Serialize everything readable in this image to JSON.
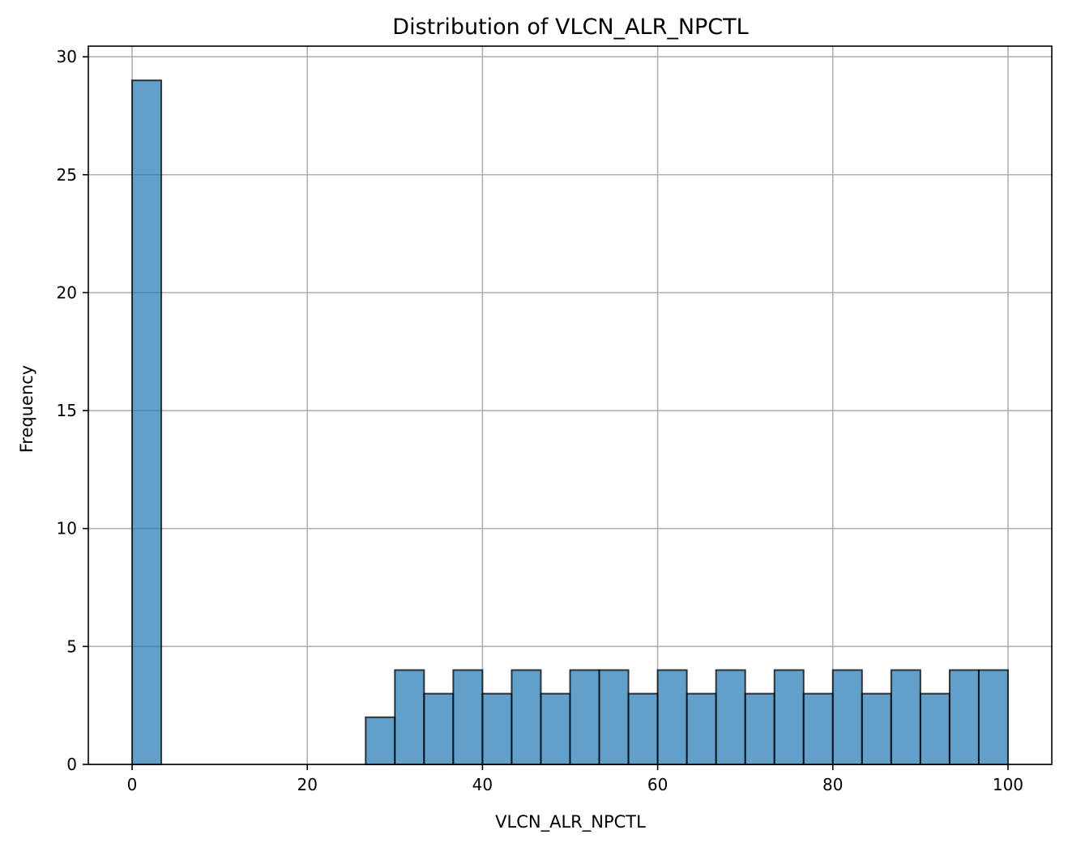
{
  "chart_data": {
    "type": "bar",
    "title": "Distribution of VLCN_ALR_NPCTL",
    "xlabel": "VLCN_ALR_NPCTL",
    "ylabel": "Frequency",
    "xlim": [
      -5,
      105
    ],
    "ylim": [
      0,
      30.45
    ],
    "xticks": [
      0,
      20,
      40,
      60,
      80,
      100
    ],
    "yticks": [
      0,
      5,
      10,
      15,
      20,
      25,
      30
    ],
    "grid": true,
    "bar_color": "#1f77b4",
    "bar_alpha": 0.7,
    "edge_color": "#000000",
    "bins": 30,
    "bin_range": [
      0,
      100
    ],
    "values": [
      29,
      0,
      0,
      0,
      0,
      0,
      0,
      0,
      2,
      4,
      3,
      4,
      3,
      4,
      3,
      4,
      4,
      3,
      4,
      3,
      4,
      3,
      4,
      3,
      4,
      3,
      4,
      3,
      4,
      4
    ]
  }
}
